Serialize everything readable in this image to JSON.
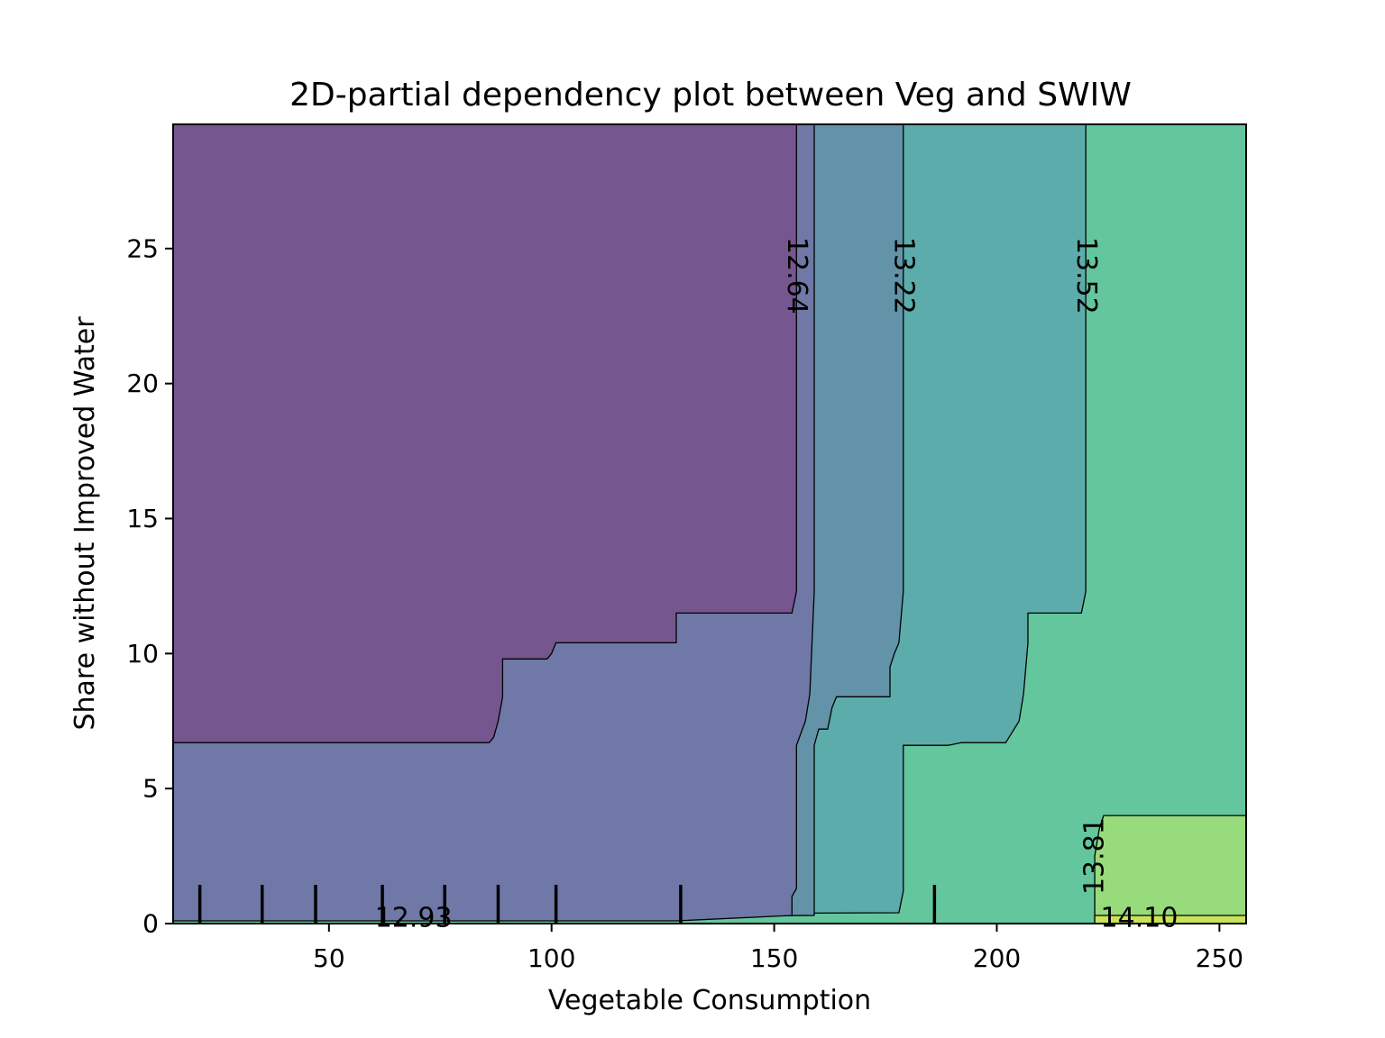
{
  "chart_data": {
    "type": "contour",
    "title": "2D-partial dependency plot between Veg and SWIW",
    "xlabel": "Vegetable Consumption",
    "ylabel": "Share without Improved Water",
    "xlim": [
      15,
      256
    ],
    "ylim": [
      0,
      29.6
    ],
    "xticks": [
      50,
      100,
      150,
      200,
      250
    ],
    "yticks": [
      0,
      5,
      10,
      15,
      20,
      25
    ],
    "grid": false,
    "levels": [
      {
        "range": "12.35–12.64",
        "color": "#76568f"
      },
      {
        "range": "12.64–12.93",
        "color": "#6f78a6"
      },
      {
        "range": "12.93–13.22",
        "color": "#6393a8"
      },
      {
        "range": "13.22–13.52",
        "color": "#5cacab"
      },
      {
        "range": "13.52–13.81",
        "color": "#64c69c"
      },
      {
        "range": "13.81–14.10",
        "color": "#97db7c"
      },
      {
        "range": "14.10–14.39",
        "color": "#c8e35a"
      }
    ],
    "regions": [
      {
        "level": 4,
        "points": [
          [
            15,
            29.6
          ],
          [
            256,
            29.6
          ],
          [
            256,
            0
          ],
          [
            15,
            0
          ]
        ]
      },
      {
        "level": 3,
        "points": [
          [
            15,
            29.6
          ],
          [
            220,
            29.6
          ],
          [
            220,
            12.3
          ],
          [
            219,
            11.5
          ],
          [
            207,
            11.5
          ],
          [
            207,
            10.4
          ],
          [
            206,
            8.5
          ],
          [
            205,
            7.5
          ],
          [
            202,
            6.7
          ],
          [
            192,
            6.7
          ],
          [
            189,
            6.6
          ],
          [
            179,
            6.6
          ],
          [
            179,
            1.2
          ],
          [
            178,
            0.4
          ],
          [
            15,
            0.3
          ]
        ]
      },
      {
        "level": 2,
        "points": [
          [
            15,
            29.6
          ],
          [
            179,
            29.6
          ],
          [
            179,
            12.3
          ],
          [
            178,
            10.4
          ],
          [
            177,
            10.0
          ],
          [
            176,
            9.5
          ],
          [
            176,
            8.4
          ],
          [
            164,
            8.4
          ],
          [
            163,
            8.0
          ],
          [
            162,
            7.2
          ],
          [
            160,
            7.2
          ],
          [
            159,
            6.6
          ],
          [
            159,
            0.3
          ],
          [
            15,
            0.2
          ]
        ]
      },
      {
        "level": 1,
        "points": [
          [
            15,
            29.6
          ],
          [
            159,
            29.6
          ],
          [
            159,
            12.3
          ],
          [
            158,
            8.5
          ],
          [
            157,
            7.5
          ],
          [
            155,
            6.6
          ],
          [
            155,
            1.3
          ],
          [
            154,
            1.0
          ],
          [
            154,
            0.3
          ],
          [
            128,
            0.1
          ],
          [
            15,
            0.1
          ]
        ]
      },
      {
        "level": 0,
        "points": [
          [
            15,
            29.6
          ],
          [
            155,
            29.6
          ],
          [
            155,
            12.3
          ],
          [
            154,
            11.5
          ],
          [
            128,
            11.5
          ],
          [
            128,
            10.4
          ],
          [
            127,
            10.4
          ],
          [
            101,
            10.4
          ],
          [
            100,
            10.0
          ],
          [
            99,
            9.8
          ],
          [
            89,
            9.8
          ],
          [
            89,
            8.4
          ],
          [
            88,
            7.5
          ],
          [
            87,
            6.9
          ],
          [
            86,
            6.7
          ],
          [
            15,
            6.7
          ]
        ]
      },
      {
        "level": 5,
        "points": [
          [
            224,
            4.0
          ],
          [
            256,
            4.0
          ],
          [
            256,
            0
          ],
          [
            222,
            0
          ],
          [
            222,
            2.5
          ],
          [
            223,
            3.5
          ]
        ]
      },
      {
        "level": 6,
        "points": [
          [
            222,
            0.3
          ],
          [
            256,
            0.3
          ],
          [
            256,
            0
          ],
          [
            222,
            0
          ]
        ]
      }
    ],
    "contour_labels": [
      {
        "text": "12.64",
        "x": 155,
        "y": 24.0,
        "rotation": 90
      },
      {
        "text": "13.22",
        "x": 179,
        "y": 24.0,
        "rotation": 90
      },
      {
        "text": "13.52",
        "x": 220,
        "y": 24.0,
        "rotation": 90
      },
      {
        "text": "13.81",
        "x": 222,
        "y": 2.5,
        "rotation": -90
      },
      {
        "text": "12.93",
        "x": 69,
        "y": 0.2,
        "rotation": 0
      },
      {
        "text": "14.10",
        "x": 232,
        "y": 0.2,
        "rotation": 0
      }
    ],
    "rug_x": [
      21,
      35,
      47,
      62,
      76,
      88,
      101,
      129,
      186
    ]
  }
}
